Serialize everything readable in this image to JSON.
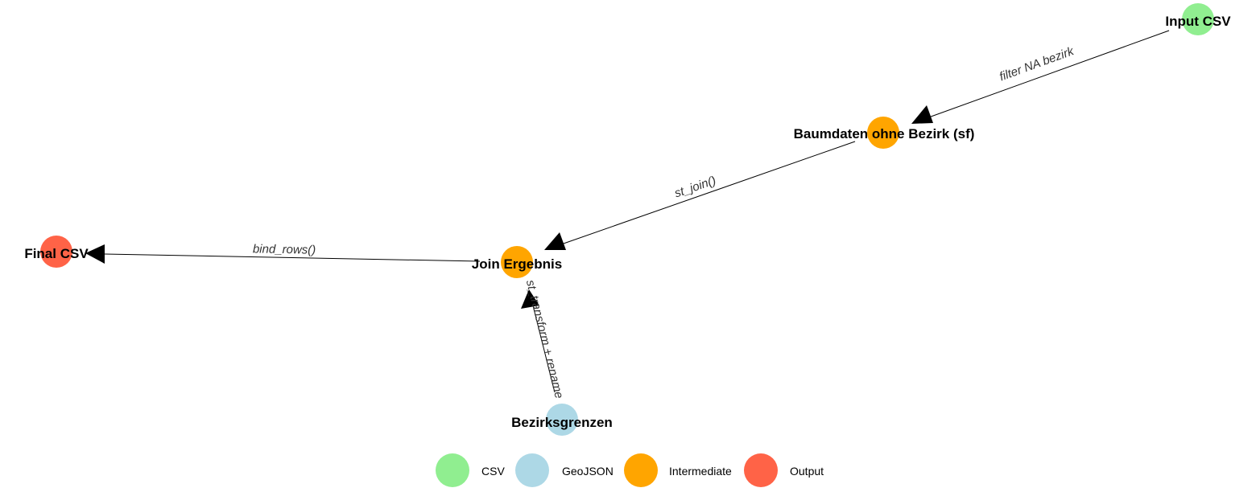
{
  "nodes": {
    "input_csv": {
      "label": "Input CSV",
      "type": "CSV"
    },
    "baumdaten": {
      "label": "Baumdaten ohne Bezirk (sf)",
      "type": "Intermediate"
    },
    "join": {
      "label": "Join Ergebnis",
      "type": "Intermediate"
    },
    "final_csv": {
      "label": "Final CSV",
      "type": "Output"
    },
    "bezirksgrenzen": {
      "label": "Bezirksgrenzen",
      "type": "GeoJSON"
    }
  },
  "edges": {
    "filter": {
      "from": "Input CSV",
      "to": "Baumdaten ohne Bezirk (sf)",
      "label": "filter NA bezirk"
    },
    "st_join": {
      "from": "Baumdaten ohne Bezirk (sf)",
      "to": "Join Ergebnis",
      "label": "st_join()"
    },
    "bind_rows": {
      "from": "Join Ergebnis",
      "to": "Final CSV",
      "label": "bind_rows()"
    },
    "st_transform": {
      "from": "Bezirksgrenzen",
      "to": "Join Ergebnis",
      "label": "st_transform + rename"
    }
  },
  "legend": {
    "csv": {
      "label": "CSV",
      "color": "#90EE90"
    },
    "geojson": {
      "label": "GeoJSON",
      "color": "#ADD8E6"
    },
    "intermediate": {
      "label": "Intermediate",
      "color": "#FFA500"
    },
    "output": {
      "label": "Output",
      "color": "#FF6347"
    }
  }
}
